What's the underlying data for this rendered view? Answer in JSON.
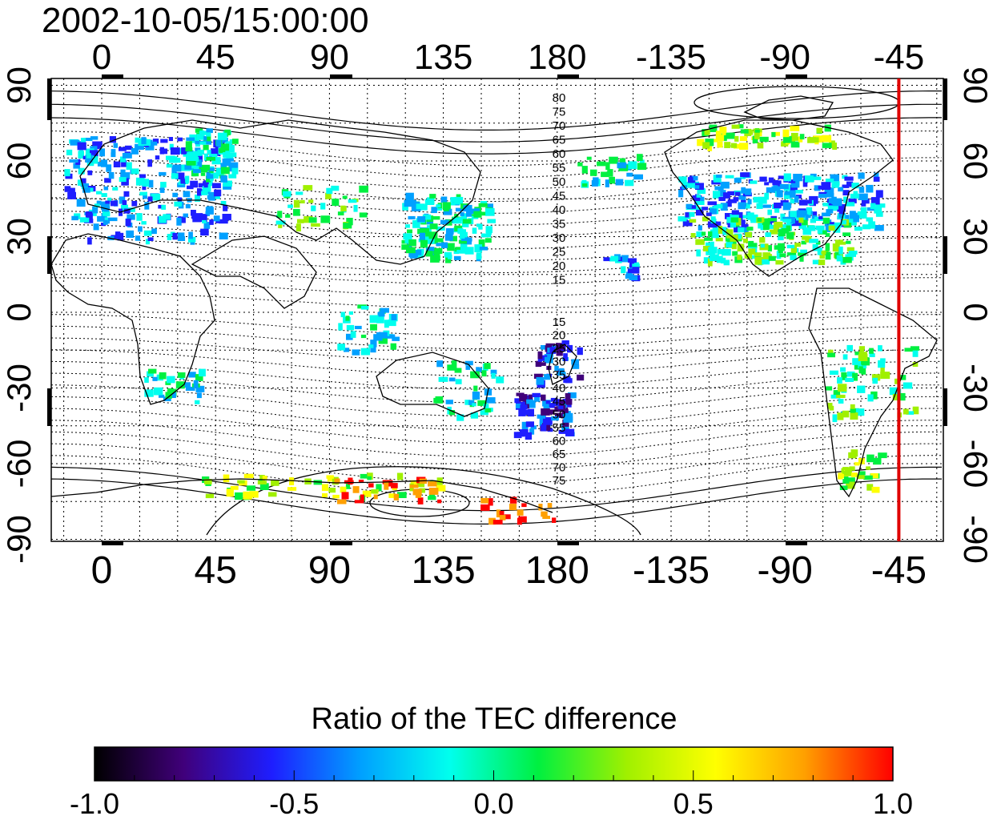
{
  "header": {
    "timestamp": "2002-10-05/15:00:00"
  },
  "map": {
    "top_lon_labels": [
      "0",
      "45",
      "90",
      "135",
      "180",
      "-135",
      "-90",
      "-45"
    ],
    "bottom_lon_labels": [
      "0",
      "45",
      "90",
      "135",
      "180",
      "-135",
      "-90",
      "-45"
    ],
    "left_lat_labels": [
      "90",
      "60",
      "30",
      "0",
      "-30",
      "-60",
      "-90"
    ],
    "right_lat_labels": [
      "90",
      "60",
      "30",
      "0",
      "-30",
      "-60",
      "-90"
    ],
    "north_contour_labels": [
      "80",
      "75",
      "70",
      "65",
      "60",
      "55",
      "50",
      "45",
      "40",
      "35",
      "30",
      "25",
      "20",
      "15"
    ],
    "south_contour_labels": [
      "15",
      "20",
      "25",
      "30",
      "35",
      "40",
      "45",
      "50",
      "55",
      "60",
      "65",
      "70",
      "75"
    ],
    "marker_longitude": -45,
    "marker_color": "#e00000"
  },
  "colorbar": {
    "title": "Ratio of the TEC difference",
    "tick_labels": [
      "-1.0",
      "-0.5",
      "0.0",
      "0.5",
      "1.0"
    ],
    "range": [
      -1.0,
      1.0
    ],
    "colors": [
      "#000000",
      "#40007a",
      "#1e1eff",
      "#00a0ff",
      "#00ffee",
      "#00f040",
      "#a0f000",
      "#ffff00",
      "#ffa000",
      "#ff0000"
    ]
  }
}
